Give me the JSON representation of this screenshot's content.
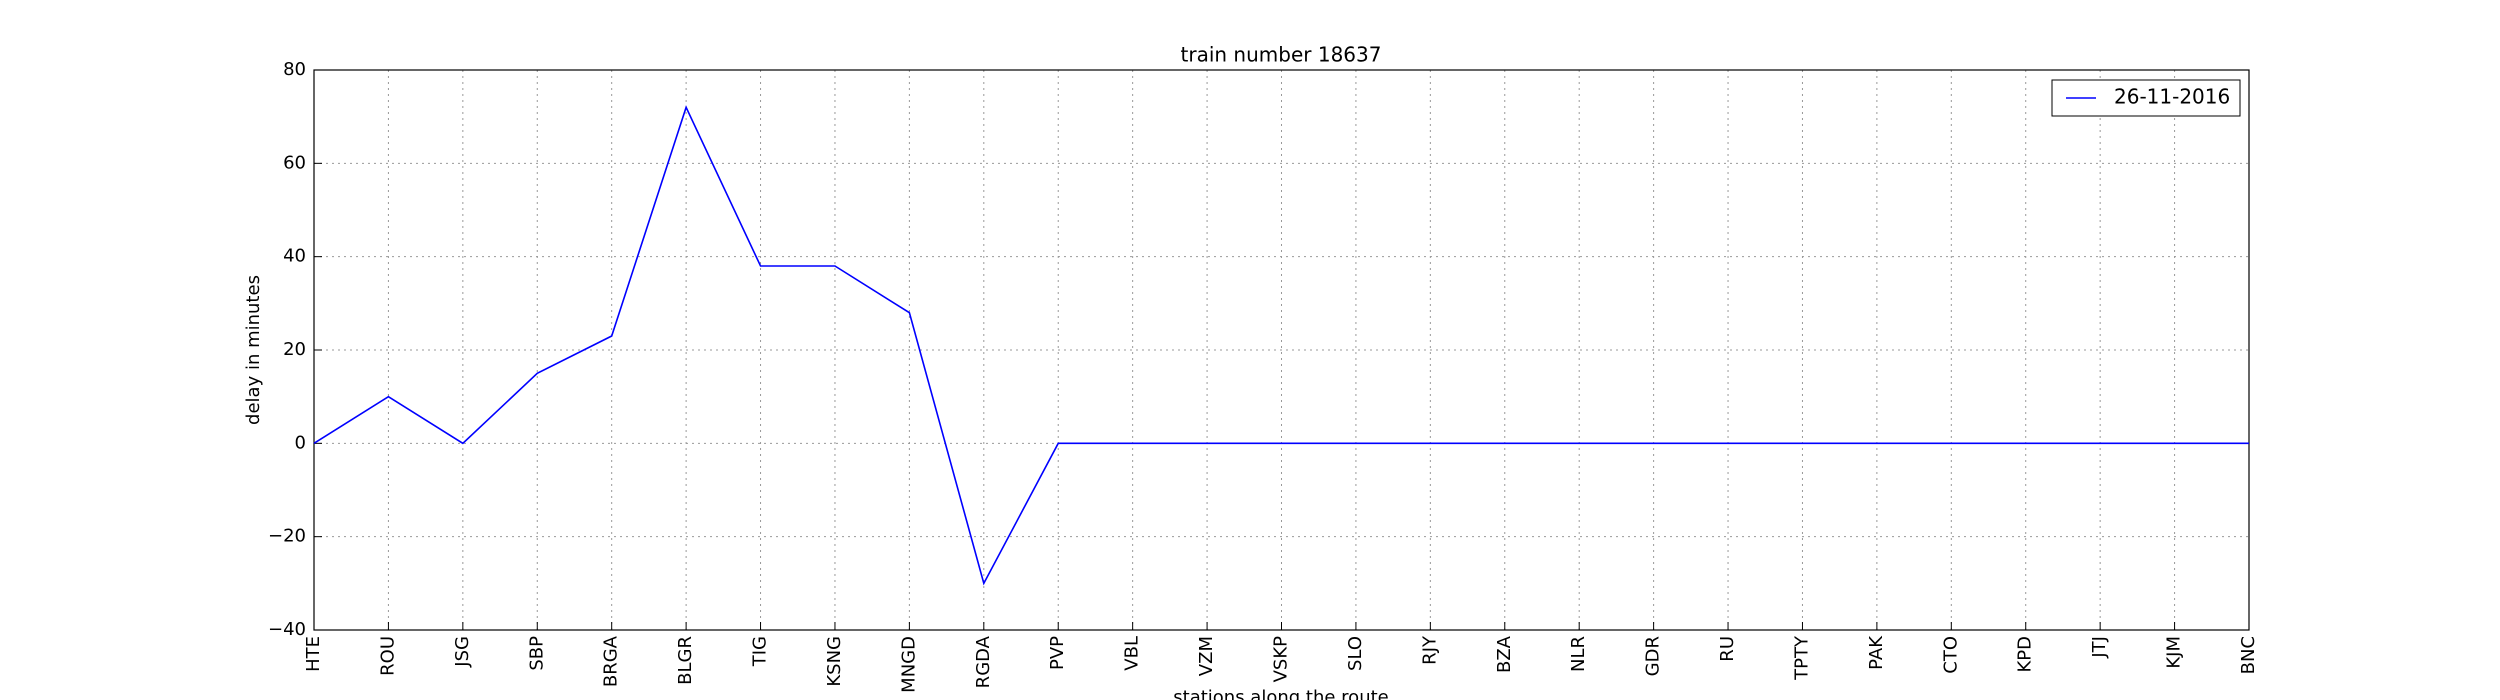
{
  "chart_data": {
    "type": "line",
    "title": "train number 18637",
    "x_label": "stations along the route",
    "y_label": "delay in minutes",
    "categories": [
      "HTE",
      "ROU",
      "JSG",
      "SBP",
      "BRGA",
      "BLGR",
      "TIG",
      "KSNG",
      "MNGD",
      "RGDA",
      "PVP",
      "VBL",
      "VZM",
      "VSKP",
      "SLO",
      "RJY",
      "BZA",
      "NLR",
      "GDR",
      "RU",
      "TPTY",
      "PAK",
      "CTO",
      "KPD",
      "JTJ",
      "KJM",
      "BNC"
    ],
    "series": [
      {
        "name": "26-11-2016",
        "color": "#0000ff",
        "values": [
          0,
          10,
          0,
          15,
          23,
          72,
          38,
          38,
          28,
          -30,
          0,
          0,
          0,
          0,
          0,
          0,
          0,
          0,
          0,
          0,
          0,
          0,
          0,
          0,
          0,
          0,
          0
        ]
      }
    ],
    "ylim": [
      -40,
      80
    ],
    "yticks": [
      {
        "value": -40,
        "label": "−40"
      },
      {
        "value": -20,
        "label": "−20"
      },
      0,
      20,
      40,
      60,
      80
    ],
    "grid": true,
    "legend": "upper-right"
  }
}
